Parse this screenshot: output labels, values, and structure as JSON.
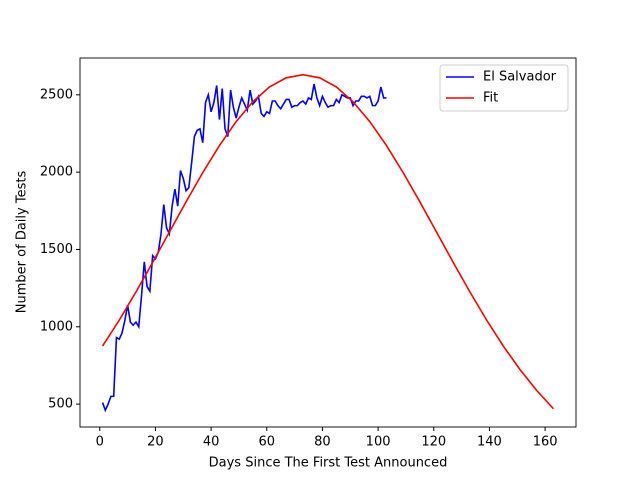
{
  "chart_data": {
    "type": "line",
    "xlabel": "Days Since The First Test Announced",
    "ylabel": "Number of Daily Tests",
    "xlim": [
      -7.1,
      171.1
    ],
    "ylim": [
      352,
      2738
    ],
    "xticks": [
      0,
      20,
      40,
      60,
      80,
      100,
      120,
      140,
      160
    ],
    "yticks": [
      500,
      1000,
      1500,
      2000,
      2500
    ],
    "legend": "upper right",
    "series": [
      {
        "name": "El Salvador",
        "color": "#0000ff",
        "x": [
          1,
          2,
          3,
          4,
          5,
          6,
          7,
          8,
          9,
          10,
          11,
          12,
          13,
          14,
          15,
          16,
          17,
          18,
          19,
          20,
          21,
          22,
          23,
          24,
          25,
          26,
          27,
          28,
          29,
          30,
          31,
          32,
          33,
          34,
          35,
          36,
          37,
          38,
          39,
          40,
          41,
          42,
          43,
          44,
          45,
          46,
          47,
          48,
          49,
          50,
          51,
          52,
          53,
          54,
          55,
          56,
          57,
          58,
          59,
          60,
          61,
          62,
          63,
          64,
          65,
          66,
          67,
          68,
          69,
          70,
          71,
          72,
          73,
          74,
          75,
          76,
          77,
          78,
          79,
          80,
          81,
          82,
          83,
          84,
          85,
          86,
          87,
          88,
          89,
          90,
          91,
          92,
          93,
          94,
          95,
          96,
          97,
          98,
          99,
          100,
          101,
          102,
          103
        ],
        "values": [
          510,
          460,
          500,
          550,
          550,
          930,
          920,
          960,
          1040,
          1140,
          1030,
          1010,
          1030,
          1000,
          1200,
          1420,
          1260,
          1230,
          1460,
          1440,
          1480,
          1600,
          1790,
          1640,
          1600,
          1780,
          1890,
          1780,
          2010,
          1960,
          1880,
          1900,
          2060,
          2230,
          2270,
          2280,
          2190,
          2450,
          2500,
          2390,
          2450,
          2560,
          2340,
          2540,
          2280,
          2230,
          2530,
          2420,
          2350,
          2420,
          2480,
          2440,
          2400,
          2530,
          2440,
          2460,
          2490,
          2380,
          2360,
          2390,
          2380,
          2460,
          2460,
          2430,
          2410,
          2440,
          2470,
          2470,
          2420,
          2430,
          2430,
          2450,
          2460,
          2440,
          2480,
          2470,
          2570,
          2480,
          2430,
          2490,
          2450,
          2420,
          2430,
          2430,
          2470,
          2450,
          2500,
          2490,
          2480,
          2480,
          2430,
          2460,
          2460,
          2490,
          2490,
          2480,
          2490,
          2430,
          2430,
          2460,
          2550,
          2480,
          2480
        ]
      },
      {
        "name": "Fit",
        "color": "#ff0000",
        "x": [
          1,
          7,
          13,
          19,
          25,
          31,
          37,
          43,
          49,
          55,
          61,
          67,
          73,
          79,
          85,
          91,
          97,
          103,
          109,
          115,
          121,
          127,
          133,
          139,
          145,
          151,
          157,
          163
        ],
        "values": [
          875,
          1043,
          1225,
          1416,
          1612,
          1808,
          1997,
          2172,
          2327,
          2455,
          2551,
          2610,
          2630,
          2610,
          2551,
          2455,
          2327,
          2172,
          1997,
          1808,
          1612,
          1416,
          1225,
          1043,
          875,
          723,
          588,
          470
        ]
      }
    ]
  }
}
